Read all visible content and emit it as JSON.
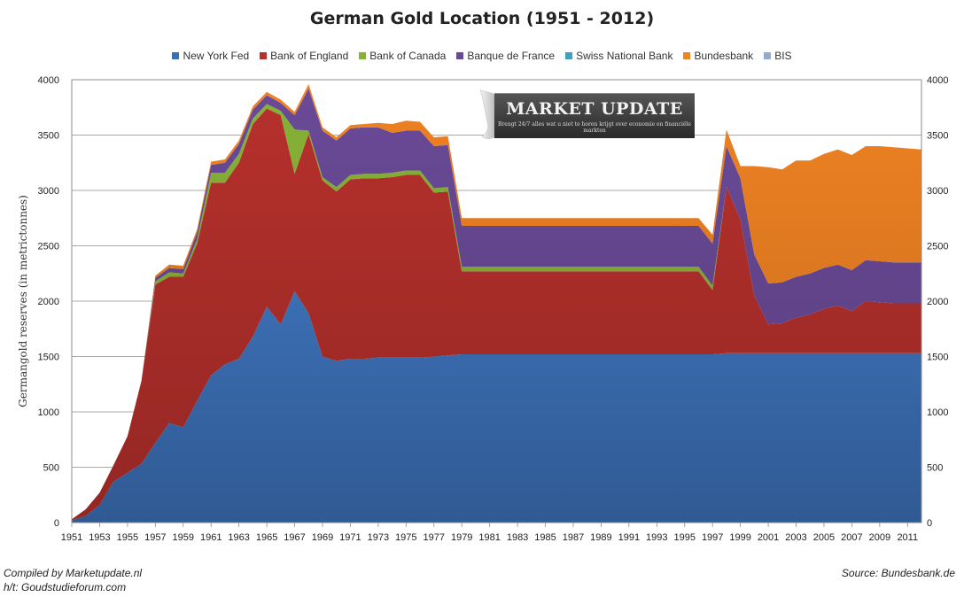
{
  "title": "German Gold Location (1951 - 2012)",
  "legend": [
    {
      "name": "New York Fed",
      "color": "#3b6eb3"
    },
    {
      "name": "Bank of England",
      "color": "#b5302c"
    },
    {
      "name": "Bank of Canada",
      "color": "#86b136"
    },
    {
      "name": "Banque de France",
      "color": "#6a4a97"
    },
    {
      "name": "Swiss National  Bank",
      "color": "#3fa1c1"
    },
    {
      "name": "Bundesbank",
      "color": "#ef8223"
    },
    {
      "name": "BIS",
      "color": "#94a9d3"
    }
  ],
  "footer": {
    "credit": "Compiled by Marketupdate.nl",
    "hattip": "h/t: Goudstudieforum.com",
    "source": "Source: Bundesbank.de"
  },
  "watermark": {
    "title": "MARKET UPDATE",
    "subtitle": "Brengt 24/7 alles wat u niet te horen krijgt over economie en financiële markten"
  },
  "chart_data": {
    "type": "area",
    "stacked": true,
    "title": "German Gold Location (1951 - 2012)",
    "ylabel": "Germangold reserves (in metrictonnes)",
    "xlabel": "",
    "ylim": [
      0,
      4000
    ],
    "yticks": [
      0,
      500,
      1000,
      1500,
      2000,
      2500,
      3000,
      3500,
      4000
    ],
    "y2ticks": [
      0,
      500,
      1000,
      1500,
      2000,
      2500,
      3000,
      3500,
      4000
    ],
    "xlim": [
      1951,
      2012
    ],
    "xticks": [
      1951,
      1953,
      1955,
      1957,
      1959,
      1961,
      1963,
      1965,
      1967,
      1969,
      1971,
      1973,
      1975,
      1977,
      1979,
      1981,
      1983,
      1985,
      1987,
      1989,
      1991,
      1993,
      1995,
      1997,
      1999,
      2001,
      2003,
      2005,
      2007,
      2009,
      2011
    ],
    "grid": true,
    "legend_position": "top",
    "x": [
      1951,
      1952,
      1953,
      1954,
      1955,
      1956,
      1957,
      1958,
      1959,
      1960,
      1961,
      1962,
      1963,
      1964,
      1965,
      1966,
      1967,
      1968,
      1969,
      1970,
      1971,
      1972,
      1973,
      1974,
      1975,
      1976,
      1977,
      1978,
      1979,
      1980,
      1981,
      1982,
      1983,
      1984,
      1985,
      1986,
      1987,
      1988,
      1989,
      1990,
      1991,
      1992,
      1993,
      1994,
      1995,
      1996,
      1997,
      1998,
      1999,
      2000,
      2001,
      2002,
      2003,
      2004,
      2005,
      2006,
      2007,
      2008,
      2009,
      2010,
      2011,
      2012
    ],
    "series": [
      {
        "name": "New York Fed",
        "values": [
          20,
          60,
          160,
          370,
          450,
          530,
          720,
          900,
          860,
          1100,
          1330,
          1430,
          1480,
          1680,
          1950,
          1790,
          2090,
          1890,
          1500,
          1460,
          1480,
          1480,
          1490,
          1490,
          1490,
          1490,
          1500,
          1510,
          1520,
          1520,
          1520,
          1520,
          1520,
          1520,
          1520,
          1520,
          1520,
          1520,
          1520,
          1520,
          1520,
          1520,
          1520,
          1520,
          1520,
          1520,
          1520,
          1530,
          1530,
          1530,
          1530,
          1530,
          1530,
          1530,
          1530,
          1530,
          1530,
          1530,
          1530,
          1530,
          1530,
          1530
        ]
      },
      {
        "name": "Bank of England",
        "values": [
          10,
          60,
          110,
          150,
          330,
          750,
          1430,
          1320,
          1360,
          1420,
          1740,
          1640,
          1770,
          1920,
          1790,
          1890,
          1060,
          1620,
          1590,
          1530,
          1620,
          1630,
          1620,
          1630,
          1650,
          1650,
          1480,
          1480,
          750,
          750,
          750,
          750,
          750,
          750,
          750,
          750,
          750,
          750,
          750,
          750,
          750,
          750,
          750,
          750,
          750,
          750,
          580,
          1500,
          1210,
          520,
          260,
          270,
          320,
          350,
          400,
          430,
          380,
          470,
          460,
          450,
          450,
          450
        ]
      },
      {
        "name": "Bank of Canada",
        "values": [
          0,
          0,
          0,
          0,
          0,
          0,
          30,
          40,
          30,
          40,
          90,
          90,
          80,
          50,
          40,
          40,
          400,
          30,
          30,
          40,
          40,
          40,
          40,
          40,
          40,
          40,
          40,
          40,
          40,
          40,
          40,
          40,
          40,
          40,
          40,
          40,
          40,
          40,
          40,
          40,
          40,
          40,
          40,
          40,
          40,
          40,
          40,
          0,
          0,
          0,
          0,
          0,
          0,
          0,
          0,
          0,
          0,
          0,
          0,
          0,
          0,
          0
        ]
      },
      {
        "name": "Banque de France",
        "values": [
          0,
          0,
          0,
          0,
          0,
          0,
          30,
          40,
          40,
          60,
          70,
          90,
          90,
          80,
          80,
          70,
          130,
          380,
          420,
          420,
          420,
          420,
          420,
          360,
          360,
          360,
          380,
          380,
          370,
          370,
          370,
          370,
          370,
          370,
          370,
          370,
          370,
          370,
          370,
          370,
          370,
          370,
          370,
          370,
          370,
          370,
          380,
          370,
          370,
          370,
          370,
          370,
          370,
          370,
          370,
          370,
          370,
          370,
          370,
          370,
          370,
          370
        ]
      },
      {
        "name": "Swiss National  Bank",
        "values": [
          0,
          0,
          0,
          0,
          0,
          0,
          0,
          0,
          0,
          0,
          0,
          0,
          0,
          0,
          0,
          0,
          0,
          0,
          0,
          0,
          0,
          0,
          0,
          0,
          0,
          0,
          0,
          0,
          0,
          0,
          0,
          0,
          0,
          0,
          0,
          0,
          0,
          0,
          0,
          0,
          0,
          0,
          0,
          0,
          0,
          0,
          0,
          0,
          0,
          0,
          0,
          0,
          0,
          0,
          0,
          0,
          0,
          0,
          0,
          0,
          0,
          0
        ]
      },
      {
        "name": "Bundesbank",
        "values": [
          0,
          0,
          0,
          0,
          0,
          0,
          20,
          30,
          30,
          30,
          30,
          30,
          30,
          30,
          30,
          30,
          30,
          40,
          30,
          30,
          30,
          30,
          40,
          80,
          90,
          80,
          80,
          80,
          70,
          70,
          70,
          70,
          70,
          70,
          70,
          70,
          70,
          70,
          70,
          70,
          70,
          70,
          70,
          70,
          70,
          70,
          80,
          150,
          110,
          800,
          1050,
          1020,
          1050,
          1020,
          1030,
          1040,
          1040,
          1030,
          1040,
          1040,
          1030,
          1020
        ]
      },
      {
        "name": "BIS",
        "values": [
          0,
          0,
          0,
          0,
          0,
          0,
          0,
          0,
          0,
          0,
          0,
          0,
          0,
          0,
          0,
          0,
          0,
          0,
          0,
          0,
          0,
          0,
          0,
          0,
          0,
          0,
          0,
          0,
          0,
          0,
          0,
          0,
          0,
          0,
          0,
          0,
          0,
          0,
          0,
          0,
          0,
          0,
          0,
          0,
          0,
          0,
          0,
          0,
          0,
          0,
          0,
          0,
          0,
          0,
          0,
          0,
          0,
          0,
          0,
          0,
          0,
          0
        ]
      }
    ]
  }
}
